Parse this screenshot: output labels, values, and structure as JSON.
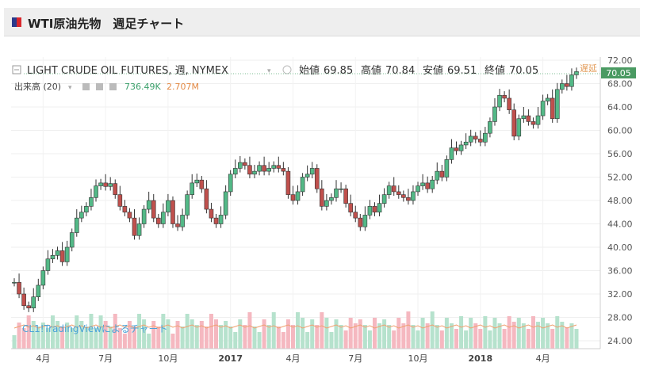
{
  "header": {
    "title": "WTI原油先物　週足チャート"
  },
  "legend": {
    "symbol_line": "LIGHT CRUDE OIL FUTURES, 週, NYMEX",
    "ohlc": [
      {
        "label": "始値",
        "value": "69.85"
      },
      {
        "label": "高値",
        "value": "70.84"
      },
      {
        "label": "安値",
        "value": "69.51"
      },
      {
        "label": "終値",
        "value": "70.05"
      }
    ],
    "volume_label": "出来高 (20)",
    "volume_value": "736.49K",
    "volume_ma_value": "2.707M"
  },
  "delayed_label": "遅延",
  "last_price_tag": "70.05",
  "watermark": "CL1!TradingViewによるチャート",
  "colors": {
    "up": "#53b987",
    "down": "#c0504d",
    "vol_up": "#b6e2cd",
    "vol_down": "#f5b8c0",
    "ma": "#f0a070",
    "tag": "#4a9a62",
    "delayed": "#e39c5a"
  },
  "chart_data": {
    "type": "candlestick",
    "interval": "weekly",
    "ylim": [
      24,
      72
    ],
    "y_ticks": [
      "72.00",
      "68.00",
      "64.00",
      "60.00",
      "56.00",
      "52.00",
      "48.00",
      "44.00",
      "40.00",
      "36.00",
      "32.00",
      "28.00",
      "24.00"
    ],
    "x_ticks": [
      "4月",
      "7月",
      "10月",
      "2017",
      "4月",
      "7月",
      "10月",
      "2018",
      "4月"
    ],
    "series": [
      {
        "name": "price",
        "start_close": 34.0,
        "last_close": 70.05,
        "closes": [
          34.0,
          32.0,
          30.0,
          29.6,
          31.5,
          33.5,
          36.0,
          38.0,
          38.6,
          39.4,
          37.5,
          40.0,
          42.5,
          45.0,
          46.0,
          47.0,
          48.5,
          50.5,
          51.0,
          50.4,
          50.9,
          49.0,
          47.0,
          46.0,
          45.0,
          42.0,
          44.0,
          46.5,
          48.0,
          45.0,
          44.0,
          46.0,
          48.0,
          44.0,
          43.5,
          45.5,
          49.0,
          51.0,
          51.5,
          50.0,
          46.5,
          45.0,
          44.0,
          45.5,
          49.5,
          52.5,
          53.5,
          54.5,
          54.0,
          52.5,
          53.0,
          54.0,
          53.0,
          53.5,
          54.0,
          53.5,
          53.0,
          49.0,
          48.0,
          49.5,
          52.0,
          52.5,
          53.5,
          50.0,
          47.0,
          48.0,
          48.5,
          50.0,
          50.0,
          47.5,
          46.0,
          45.0,
          43.5,
          45.5,
          47.0,
          46.0,
          47.5,
          49.0,
          50.5,
          49.5,
          49.0,
          48.5,
          48.0,
          49.5,
          50.5,
          51.0,
          50.0,
          51.5,
          53.0,
          52.0,
          55.0,
          57.0,
          56.5,
          57.5,
          58.0,
          59.0,
          58.5,
          58.0,
          59.5,
          61.5,
          64.0,
          66.0,
          65.5,
          63.5,
          59.0,
          62.0,
          62.5,
          61.5,
          61.0,
          62.5,
          65.0,
          65.5,
          62.0,
          67.0,
          68.0,
          67.5,
          69.5,
          70.05
        ]
      }
    ],
    "volume_ma": {
      "name": "出来高 (20)"
    }
  }
}
